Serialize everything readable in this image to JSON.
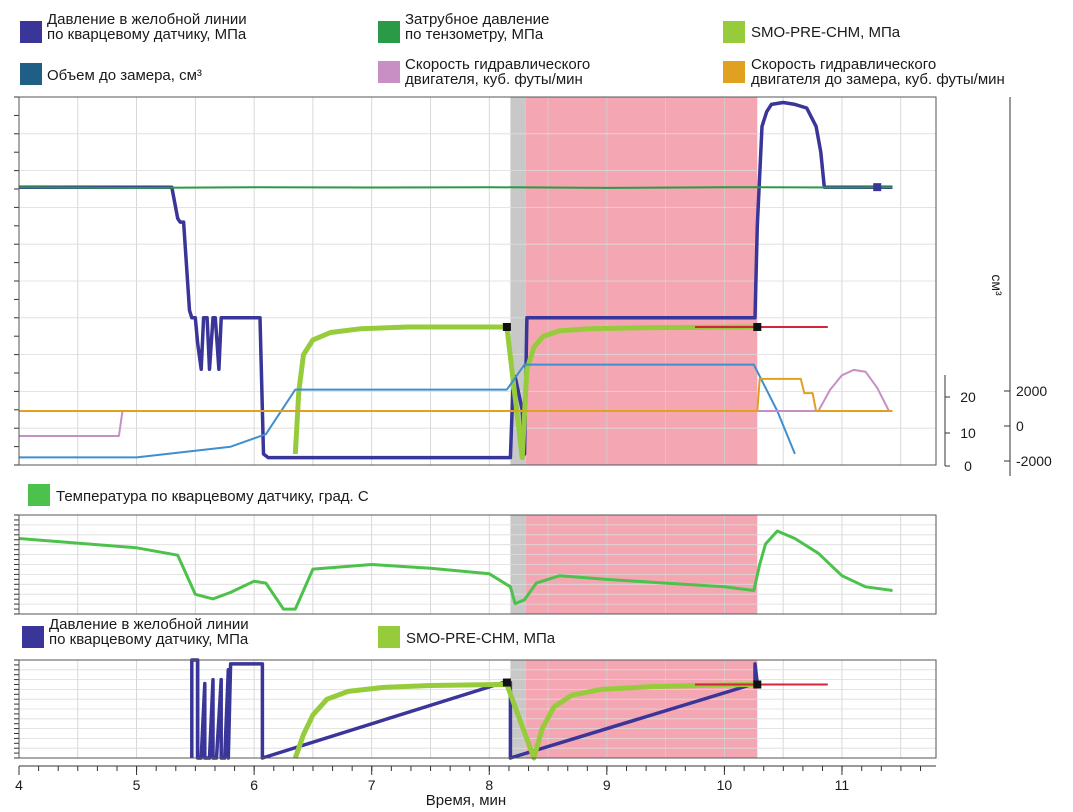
{
  "chart_data": [
    {
      "type": "line",
      "title": "",
      "legend": [
        {
          "label": "Давление в желобной линии\nпо кварцевому датчику, МПа",
          "color": "#3a3598"
        },
        {
          "label": "Затрубное давление\nпо тензометру, МПа",
          "color": "#2a9a46"
        },
        {
          "label": "SMO-PRE-CHM, МПа",
          "color": "#96cc3c"
        },
        {
          "label": "Объем до замера, см³",
          "color": "#1f5f86"
        },
        {
          "label": "Скорость гидравлического\nдвигателя, куб. футы/мин",
          "color": "#c88fc4"
        },
        {
          "label": "Скорость гидравлического\nдвигателя до замера, куб. футы/мин",
          "color": "#e0a020"
        }
      ],
      "xlim": [
        4,
        11.8
      ],
      "shaded_intervals": [
        {
          "from": 8.18,
          "to": 8.31,
          "color": "#c8c8c8"
        },
        {
          "from": 8.31,
          "to": 10.28,
          "color": "#f4a7b2"
        }
      ],
      "axis_inner": {
        "label": "",
        "ticks": [
          "20",
          "10",
          "0"
        ]
      },
      "axis_outer": {
        "label": "см³",
        "ticks": [
          "2000",
          "0",
          "-2000"
        ]
      },
      "series": [
        {
          "name": "Давление в желобной линии по кварцевому датчику, МПа",
          "color": "#3a3598",
          "x": [
            4.0,
            5.3,
            5.35,
            5.37,
            5.4,
            5.45,
            5.47,
            5.5,
            5.52,
            5.55,
            5.57,
            5.6,
            5.62,
            5.65,
            5.67,
            5.7,
            5.72,
            5.75,
            5.8,
            6.05,
            6.08,
            6.12,
            6.35,
            6.4,
            8.05,
            8.12,
            8.15,
            8.18,
            8.2,
            8.22,
            8.28,
            8.3,
            8.32,
            10.26,
            10.28,
            10.32,
            10.36,
            10.4,
            10.5,
            10.6,
            10.7,
            10.78,
            10.82,
            10.85,
            11.1,
            11.3,
            11.43
          ],
          "y": [
            75.5,
            75.5,
            67,
            66,
            66,
            42,
            40,
            40,
            33,
            26,
            40,
            40,
            26,
            40,
            40,
            26,
            40,
            40,
            40,
            40,
            3,
            2,
            2,
            2,
            2,
            2,
            2,
            2,
            20,
            24,
            15,
            3,
            40,
            40,
            65,
            92,
            96,
            98,
            98.5,
            98,
            97,
            92,
            85,
            75.5,
            75.5,
            75.5,
            75.5
          ]
        },
        {
          "name": "Затрубное давление по тензометру, МПа",
          "color": "#2a9a46",
          "x": [
            4.0,
            5.0,
            6.0,
            7.0,
            8.0,
            9.0,
            10.0,
            11.0,
            11.43
          ],
          "y": [
            75.5,
            75.3,
            75.5,
            75.4,
            75.5,
            75.3,
            75.5,
            75.4,
            75.5
          ]
        },
        {
          "name": "SMO-PRE-CHM, МПа",
          "color": "#96cc3c",
          "x": [
            6.35,
            6.38,
            6.42,
            6.5,
            6.65,
            6.9,
            7.3,
            8.1,
            8.15,
            8.28,
            8.32,
            8.38,
            8.46,
            8.6,
            8.85,
            9.3,
            10.2,
            10.28
          ],
          "y": [
            3,
            20,
            30,
            34,
            36,
            37,
            37.5,
            37.5,
            37.5,
            2,
            26,
            32,
            35,
            36.5,
            37,
            37.3,
            37.5,
            37.5
          ]
        },
        {
          "name": "Объем до замера, см³",
          "color": "#3f8fcf",
          "x": [
            4.0,
            5.0,
            5.8,
            6.1,
            6.25,
            6.35,
            6.4,
            8.15,
            8.3,
            10.25,
            10.45,
            10.6
          ],
          "y": [
            -2600,
            -2600,
            -2000,
            -1300,
            200,
            1200,
            1200,
            1200,
            2600,
            2600,
            0,
            -2400
          ]
        },
        {
          "name": "Скорость гидравлического двигателя, куб. футы/мин",
          "color": "#c88fc4",
          "x": [
            4.0,
            4.85,
            4.88,
            10.8,
            10.9,
            11.0,
            11.1,
            11.2,
            11.3,
            11.4
          ],
          "y": [
            -1400,
            -1400,
            0,
            0,
            1200,
            2000,
            2300,
            2200,
            1300,
            0
          ]
        },
        {
          "name": "Скорость гидравлического двигателя до замера, куб. футы/мин",
          "color": "#e0a020",
          "x": [
            4.0,
            10.28,
            10.3,
            10.65,
            10.68,
            10.75,
            10.78,
            11.43
          ],
          "y": [
            0,
            0,
            1800,
            1800,
            1000,
            1000,
            0,
            0
          ]
        },
        {
          "name": "",
          "color": "#d4243a",
          "x": [
            9.75,
            10.88
          ],
          "y": [
            37.5,
            37.5
          ]
        }
      ]
    },
    {
      "type": "line",
      "title": "",
      "legend": [
        {
          "label": "Температура по кварцевому датчику, град. С",
          "color": "#4cc24c"
        }
      ],
      "xlim": [
        4,
        11.8
      ],
      "shaded_intervals": [
        {
          "from": 8.18,
          "to": 8.31,
          "color": "#c8c8c8"
        },
        {
          "from": 8.31,
          "to": 10.28,
          "color": "#f4a7b2"
        }
      ],
      "series": [
        {
          "name": "Температура по кварцевому датчику, град. С",
          "color": "#4cc24c",
          "x": [
            4.0,
            5.0,
            5.35,
            5.5,
            5.65,
            5.8,
            6.0,
            6.1,
            6.25,
            6.35,
            6.5,
            7.0,
            7.5,
            8.0,
            8.18,
            8.22,
            8.3,
            8.4,
            8.6,
            9.0,
            9.5,
            10.0,
            10.25,
            10.3,
            10.35,
            10.45,
            10.6,
            10.8,
            11.0,
            11.2,
            11.43
          ],
          "y": [
            78,
            68,
            60,
            18,
            13,
            20,
            32,
            30,
            2,
            2,
            45,
            50,
            46,
            40,
            26,
            8,
            12,
            30,
            38,
            34,
            30,
            26,
            22,
            50,
            72,
            86,
            78,
            62,
            38,
            26,
            22
          ]
        }
      ]
    },
    {
      "type": "line",
      "title": "",
      "legend": [
        {
          "label": "Давление в желобной линии\nпо кварцевому датчику, МПа",
          "color": "#3a3598"
        },
        {
          "label": "SMO-PRE-CHM, МПа",
          "color": "#96cc3c"
        }
      ],
      "xlabel": "Время, мин",
      "xticks": [
        4,
        5,
        6,
        7,
        8,
        9,
        10,
        11
      ],
      "xlim": [
        4,
        11.8
      ],
      "ylim": [
        0,
        50
      ],
      "shaded_intervals": [
        {
          "from": 8.18,
          "to": 8.31,
          "color": "#c8c8c8"
        },
        {
          "from": 8.31,
          "to": 10.28,
          "color": "#f4a7b2"
        }
      ],
      "series": [
        {
          "name": "Давление в желобной линии по кварцевому датчику, МПа",
          "color": "#3a3598",
          "x": [
            5.47,
            5.47,
            5.5,
            5.52,
            5.52,
            5.55,
            5.58,
            5.58,
            5.62,
            5.65,
            5.65,
            5.68,
            5.72,
            5.72,
            5.75,
            5.78,
            5.78,
            5.8,
            6.05,
            6.07,
            6.07,
            8.12,
            8.15,
            8.18,
            8.18,
            10.26,
            10.26,
            10.28
          ],
          "y": [
            0,
            50,
            50,
            50,
            0,
            0,
            38,
            0,
            0,
            40,
            0,
            0,
            40,
            0,
            0,
            45,
            0,
            48,
            48,
            48,
            0,
            38.5,
            38.5,
            38.5,
            0,
            38,
            48,
            38
          ]
        },
        {
          "name": "SMO-PRE-CHM, МПа",
          "color": "#96cc3c",
          "x": [
            6.35,
            6.42,
            6.5,
            6.62,
            6.8,
            7.1,
            7.5,
            8.1,
            8.15,
            8.38,
            8.45,
            8.55,
            8.7,
            8.95,
            9.4,
            10.2,
            10.28
          ],
          "y": [
            0,
            12,
            22,
            30,
            34,
            36,
            37,
            37.5,
            37.5,
            0,
            15,
            26,
            32,
            35,
            36.5,
            37.5,
            37.5
          ]
        },
        {
          "name": "",
          "color": "#d4243a",
          "x": [
            9.75,
            10.88
          ],
          "y": [
            37.5,
            37.5
          ]
        }
      ]
    }
  ]
}
